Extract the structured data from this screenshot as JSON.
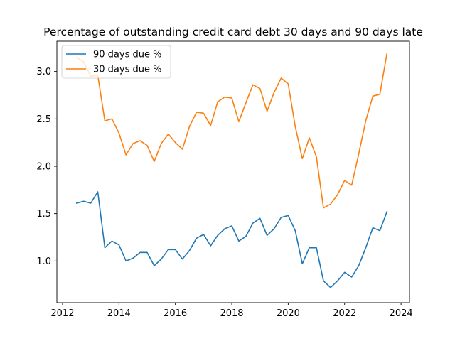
{
  "chart_data": {
    "type": "line",
    "title": "Percentage of outstanding credit card debt 30 days and 90 days late",
    "xlabel": "",
    "ylabel": "",
    "xlim": [
      2011.8,
      2024.3
    ],
    "ylim": [
      0.56,
      3.32
    ],
    "xticks": [
      2012,
      2014,
      2016,
      2018,
      2020,
      2022,
      2024
    ],
    "xtick_labels": [
      "2012",
      "2014",
      "2016",
      "2018",
      "2020",
      "2022",
      "2024"
    ],
    "yticks": [
      1.0,
      1.5,
      2.0,
      2.5,
      3.0
    ],
    "ytick_labels": [
      "1.0",
      "1.5",
      "2.0",
      "2.5",
      "3.0"
    ],
    "grid": false,
    "legend_position": "upper-left",
    "x": [
      2012.5,
      2012.75,
      2013.0,
      2013.25,
      2013.5,
      2013.75,
      2014.0,
      2014.25,
      2014.5,
      2014.75,
      2015.0,
      2015.25,
      2015.5,
      2015.75,
      2016.0,
      2016.25,
      2016.5,
      2016.75,
      2017.0,
      2017.25,
      2017.5,
      2017.75,
      2018.0,
      2018.25,
      2018.5,
      2018.75,
      2019.0,
      2019.25,
      2019.5,
      2019.75,
      2020.0,
      2020.25,
      2020.5,
      2020.75,
      2021.0,
      2021.25,
      2021.5,
      2021.75,
      2022.0,
      2022.25,
      2022.5,
      2022.75,
      2023.0,
      2023.25,
      2023.5
    ],
    "series": [
      {
        "name": "90 days due %",
        "color": "#1f77b4",
        "values": [
          1.61,
          1.63,
          1.61,
          1.73,
          1.14,
          1.21,
          1.17,
          1.0,
          1.03,
          1.09,
          1.09,
          0.95,
          1.02,
          1.12,
          1.12,
          1.02,
          1.11,
          1.24,
          1.28,
          1.16,
          1.27,
          1.34,
          1.37,
          1.21,
          1.26,
          1.4,
          1.45,
          1.27,
          1.34,
          1.46,
          1.48,
          1.32,
          0.97,
          1.14,
          1.14,
          0.79,
          0.72,
          0.79,
          0.88,
          0.83,
          0.95,
          1.14,
          1.35,
          1.32,
          1.52
        ]
      },
      {
        "name": "30 days due %",
        "color": "#ff7f0e",
        "values": [
          3.15,
          3.1,
          2.95,
          2.96,
          2.48,
          2.5,
          2.35,
          2.12,
          2.24,
          2.27,
          2.22,
          2.05,
          2.24,
          2.34,
          2.25,
          2.18,
          2.42,
          2.57,
          2.56,
          2.43,
          2.68,
          2.73,
          2.72,
          2.47,
          2.67,
          2.86,
          2.82,
          2.58,
          2.78,
          2.93,
          2.87,
          2.42,
          2.08,
          2.3,
          2.1,
          1.56,
          1.6,
          1.7,
          1.85,
          1.8,
          2.13,
          2.48,
          2.74,
          2.76,
          3.19
        ]
      }
    ]
  }
}
